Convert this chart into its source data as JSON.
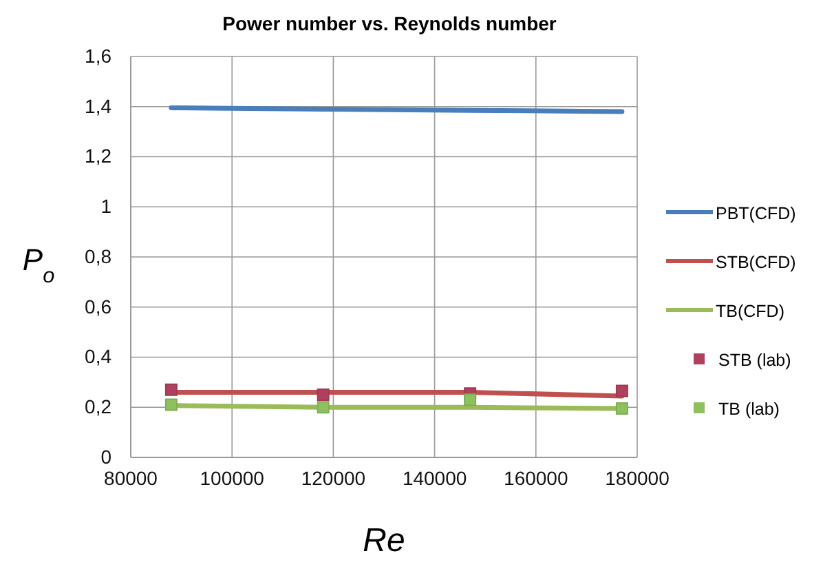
{
  "chart_data": {
    "type": "line",
    "title": "Power number vs. Reynolds number",
    "xlabel": "Re",
    "ylabel": "P$_{o}$",
    "x": [
      88000,
      118000,
      147000,
      177000
    ],
    "series": [
      {
        "name": "PBT(CFD)",
        "color": "#4a7ebb",
        "marker": "none",
        "values": [
          1.395,
          1.39,
          1.385,
          1.38
        ]
      },
      {
        "name": "STB(CFD)",
        "color": "#c0504d",
        "marker": "none",
        "values": [
          0.26,
          0.26,
          0.26,
          0.245
        ]
      },
      {
        "name": "TB(CFD)",
        "color": "#9bbb59",
        "marker": "none",
        "values": [
          0.207,
          0.2,
          0.2,
          0.195
        ]
      },
      {
        "name": "STB (lab)",
        "type": "scatter",
        "color": "#b0405e",
        "marker": "square",
        "values": [
          0.27,
          0.25,
          0.255,
          0.265
        ]
      },
      {
        "name": "TB (lab)",
        "type": "scatter",
        "color": "#8fc060",
        "marker": "square",
        "values": [
          0.21,
          0.2,
          0.23,
          0.195
        ]
      }
    ],
    "xlim": [
      80000,
      180000
    ],
    "xticks": [
      80000,
      100000,
      120000,
      140000,
      160000,
      180000
    ],
    "ylim": [
      0,
      1.6
    ],
    "yticks": [
      0,
      {
        "value": 0.2,
        "label": "0,2"
      },
      {
        "value": 0.4,
        "label": "0,4"
      },
      {
        "value": 0.6,
        "label": "0,6"
      },
      {
        "value": 0.8,
        "label": "0,8"
      },
      1,
      {
        "value": 1.2,
        "label": "1,2"
      },
      {
        "value": 1.4,
        "label": "1,4"
      },
      {
        "value": 1.6,
        "label": "1,6"
      }
    ],
    "grid": true,
    "legend": "right"
  }
}
